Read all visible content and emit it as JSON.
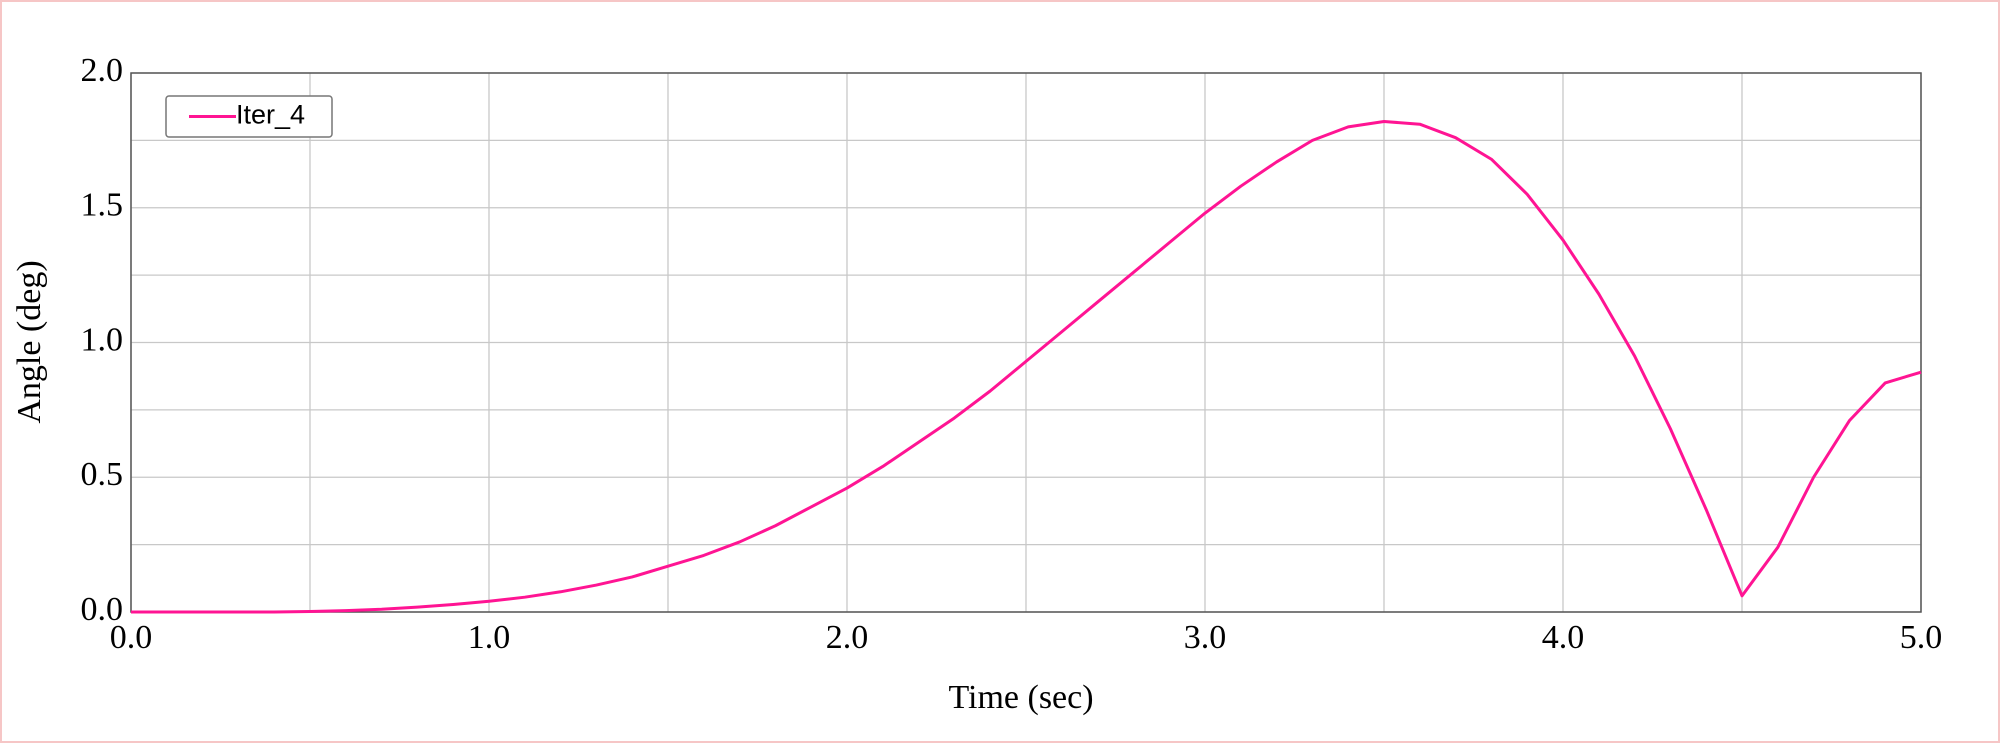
{
  "chart_data": {
    "type": "line",
    "xlabel": "Time (sec)",
    "ylabel": "Angle (deg)",
    "x": [
      0.0,
      0.1,
      0.2,
      0.3,
      0.4,
      0.5,
      0.6,
      0.7,
      0.8,
      0.9,
      1.0,
      1.1,
      1.2,
      1.3,
      1.4,
      1.5,
      1.6,
      1.7,
      1.8,
      1.9,
      2.0,
      2.1,
      2.2,
      2.3,
      2.4,
      2.5,
      2.6,
      2.7,
      2.8,
      2.9,
      3.0,
      3.1,
      3.2,
      3.3,
      3.4,
      3.5,
      3.6,
      3.7,
      3.8,
      3.9,
      4.0,
      4.1,
      4.2,
      4.3,
      4.4,
      4.5,
      4.6,
      4.7,
      4.8,
      4.9,
      5.0
    ],
    "series": [
      {
        "name": "Iter_4",
        "color": "#ff1493",
        "values": [
          0,
          0,
          0,
          0,
          0,
          0.002,
          0.005,
          0.01,
          0.018,
          0.028,
          0.04,
          0.055,
          0.075,
          0.1,
          0.13,
          0.17,
          0.21,
          0.26,
          0.32,
          0.39,
          0.46,
          0.54,
          0.63,
          0.72,
          0.82,
          0.93,
          1.04,
          1.15,
          1.26,
          1.37,
          1.48,
          1.58,
          1.67,
          1.75,
          1.8,
          1.82,
          1.81,
          1.76,
          1.68,
          1.55,
          1.38,
          1.18,
          0.95,
          0.68,
          0.38,
          0.06,
          0.24,
          0.5,
          0.71,
          0.85,
          0.89
        ]
      }
    ],
    "xlim": [
      0,
      5
    ],
    "ylim": [
      0,
      2
    ],
    "xticks": [
      {
        "value": 0,
        "label": "0.0"
      },
      {
        "value": 1,
        "label": "1.0"
      },
      {
        "value": 2,
        "label": "2.0"
      },
      {
        "value": 3,
        "label": "3.0"
      },
      {
        "value": 4,
        "label": "4.0"
      },
      {
        "value": 5,
        "label": "5.0"
      }
    ],
    "yticks": [
      {
        "value": 0,
        "label": "0.0"
      },
      0.5,
      {
        "value": 1,
        "label": "1.0"
      },
      1.5,
      {
        "value": 2,
        "label": "2.0"
      }
    ],
    "xminorticks": [
      0.5,
      1.5,
      2.5,
      3.5,
      4.5
    ],
    "yminorticks": [
      0.25,
      0.75,
      1.25,
      1.75
    ],
    "grid": true,
    "legend": "upper left"
  }
}
